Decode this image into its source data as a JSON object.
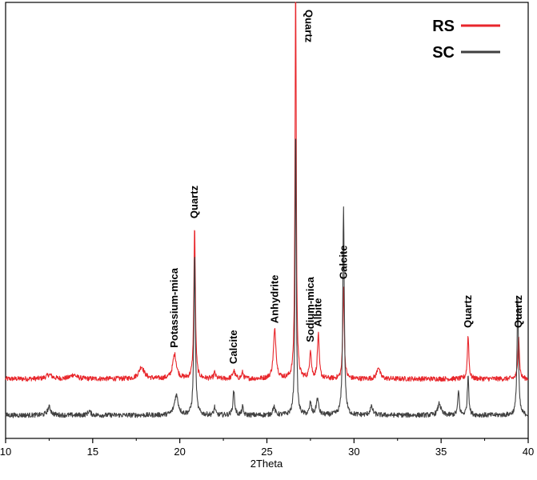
{
  "chart_data": {
    "type": "line",
    "title": "",
    "xlabel": "2Theta",
    "ylabel": "",
    "xlim": [
      10,
      40
    ],
    "xticks": [
      10,
      15,
      20,
      25,
      30,
      35,
      40
    ],
    "tick_labels": [
      "10",
      "15",
      "20",
      "25",
      "30",
      "35",
      "40"
    ],
    "y_units": "relative intensity (unlabeled axis)",
    "legend_position": "top-right",
    "series": [
      {
        "name": "RS",
        "color": "#e8262b",
        "baseline": 0.09,
        "peaks": [
          {
            "x": 12.5,
            "h": 0.01,
            "w": 0.2
          },
          {
            "x": 13.9,
            "h": 0.01,
            "w": 0.2
          },
          {
            "x": 17.8,
            "h": 0.03,
            "w": 0.18
          },
          {
            "x": 19.7,
            "h": 0.06,
            "w": 0.13
          },
          {
            "x": 20.85,
            "h": 0.38,
            "w": 0.05
          },
          {
            "x": 22.0,
            "h": 0.015,
            "w": 0.06
          },
          {
            "x": 23.1,
            "h": 0.02,
            "w": 0.08
          },
          {
            "x": 23.6,
            "h": 0.015,
            "w": 0.06
          },
          {
            "x": 25.45,
            "h": 0.12,
            "w": 0.09
          },
          {
            "x": 26.65,
            "h": 1.04,
            "w": 0.04
          },
          {
            "x": 27.5,
            "h": 0.07,
            "w": 0.06
          },
          {
            "x": 27.95,
            "h": 0.11,
            "w": 0.06
          },
          {
            "x": 29.4,
            "h": 0.23,
            "w": 0.05
          },
          {
            "x": 31.4,
            "h": 0.03,
            "w": 0.1
          },
          {
            "x": 36.55,
            "h": 0.11,
            "w": 0.05
          },
          {
            "x": 39.45,
            "h": 0.11,
            "w": 0.05
          }
        ]
      },
      {
        "name": "SC",
        "color": "#404040",
        "baseline": 0.0,
        "peaks": [
          {
            "x": 12.5,
            "h": 0.02,
            "w": 0.12
          },
          {
            "x": 14.8,
            "h": 0.01,
            "w": 0.1
          },
          {
            "x": 19.8,
            "h": 0.05,
            "w": 0.13
          },
          {
            "x": 20.85,
            "h": 0.4,
            "w": 0.05
          },
          {
            "x": 22.0,
            "h": 0.02,
            "w": 0.05
          },
          {
            "x": 23.1,
            "h": 0.06,
            "w": 0.06
          },
          {
            "x": 23.6,
            "h": 0.02,
            "w": 0.05
          },
          {
            "x": 25.4,
            "h": 0.02,
            "w": 0.08
          },
          {
            "x": 26.65,
            "h": 0.73,
            "w": 0.04
          },
          {
            "x": 27.5,
            "h": 0.03,
            "w": 0.06
          },
          {
            "x": 27.9,
            "h": 0.04,
            "w": 0.08
          },
          {
            "x": 29.4,
            "h": 0.52,
            "w": 0.05
          },
          {
            "x": 31.0,
            "h": 0.02,
            "w": 0.1
          },
          {
            "x": 34.9,
            "h": 0.03,
            "w": 0.1
          },
          {
            "x": 36.0,
            "h": 0.06,
            "w": 0.05
          },
          {
            "x": 36.55,
            "h": 0.1,
            "w": 0.05
          },
          {
            "x": 39.4,
            "h": 0.29,
            "w": 0.05
          }
        ]
      }
    ],
    "annotations": [
      {
        "text": "Potassium-mica",
        "x": 19.7
      },
      {
        "text": "Quartz",
        "x": 20.85
      },
      {
        "text": "Calcite",
        "x": 23.1
      },
      {
        "text": "Anhydrite",
        "x": 25.45
      },
      {
        "text": "Quartz",
        "x": 26.65
      },
      {
        "text": "Sodium-mica",
        "x": 27.5
      },
      {
        "text": "Albite",
        "x": 27.95
      },
      {
        "text": "Calcite",
        "x": 29.4
      },
      {
        "text": "Quartz",
        "x": 36.55
      },
      {
        "text": "Quartz",
        "x": 39.45
      }
    ]
  }
}
